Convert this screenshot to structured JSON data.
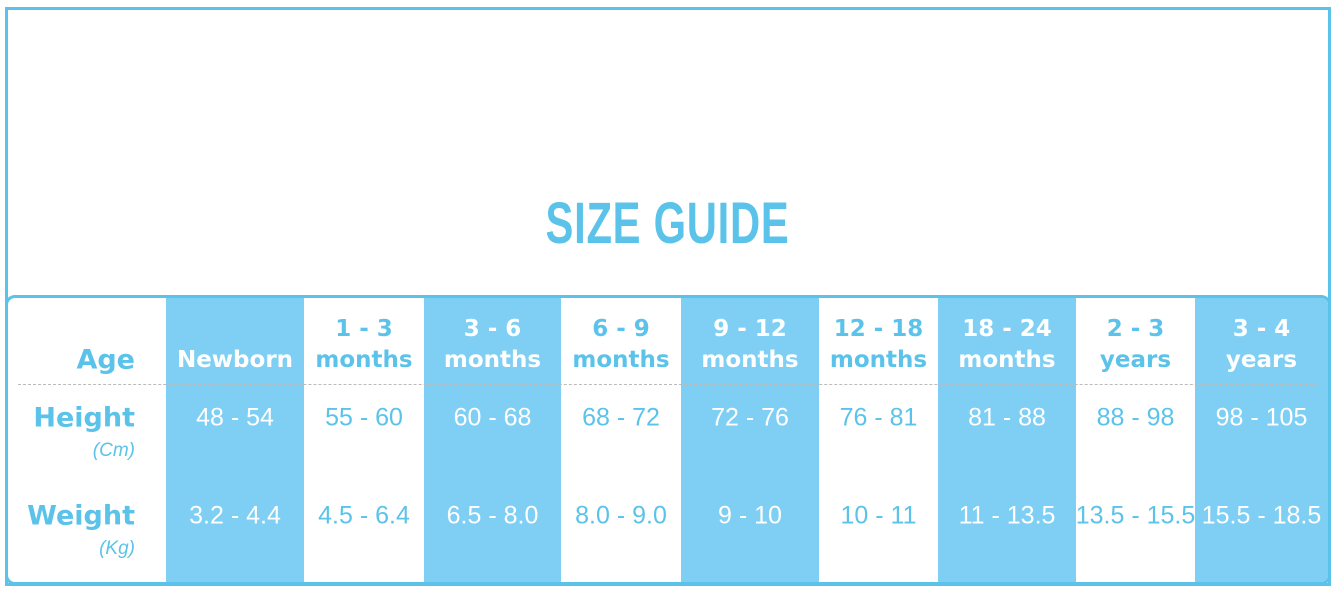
{
  "header": {
    "title": "SIZE GUIDE"
  },
  "table": {
    "row_labels": {
      "age": "Age",
      "height": "Height",
      "height_unit": "(Cm)",
      "weight": "Weight",
      "weight_unit": "(Kg)"
    },
    "columns": [
      {
        "age": [
          "Newborn"
        ],
        "height": "48 - 54",
        "weight": "3.2 - 4.4"
      },
      {
        "age": [
          "1 - 3",
          "months"
        ],
        "height": "55 - 60",
        "weight": "4.5 - 6.4"
      },
      {
        "age": [
          "3 - 6",
          "months"
        ],
        "height": "60 - 68",
        "weight": "6.5 - 8.0"
      },
      {
        "age": [
          "6 - 9",
          "months"
        ],
        "height": "68 - 72",
        "weight": "8.0 - 9.0"
      },
      {
        "age": [
          "9 - 12",
          "months"
        ],
        "height": "72 - 76",
        "weight": "9 - 10"
      },
      {
        "age": [
          "12 - 18",
          "months"
        ],
        "height": "76 - 81",
        "weight": "10 - 11"
      },
      {
        "age": [
          "18 - 24",
          "months"
        ],
        "height": "81 - 88",
        "weight": "11 - 13.5"
      },
      {
        "age": [
          "2 - 3",
          "years"
        ],
        "height": "88 - 98",
        "weight": "13.5 - 15.5"
      },
      {
        "age": [
          "3 - 4",
          "years"
        ],
        "height": "98 - 105",
        "weight": "15.5 - 18.5"
      }
    ]
  }
}
